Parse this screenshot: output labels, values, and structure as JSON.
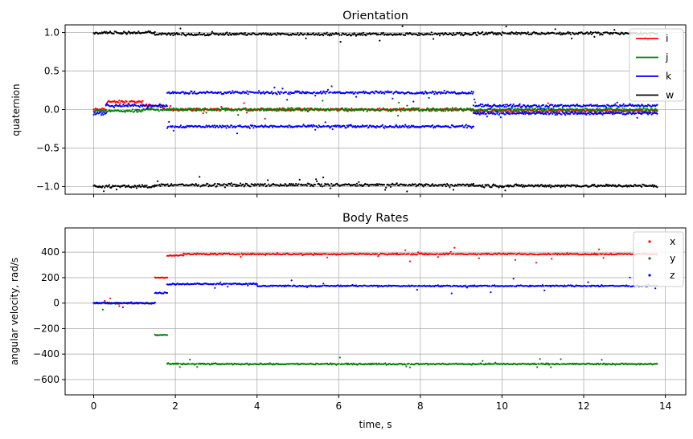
{
  "chart_data": [
    {
      "type": "scatter",
      "title": "Orientation",
      "ylabel": "quaternion",
      "xlabel": "",
      "xlim": [
        -0.7,
        14.5
      ],
      "ylim": [
        -1.1,
        1.1
      ],
      "yticks": [
        -1.0,
        -0.5,
        0.0,
        0.5,
        1.0
      ],
      "ytick_labels": [
        "−1.0",
        "−0.5",
        "0.0",
        "0.5",
        "1.0"
      ],
      "xticks": [
        0,
        2,
        4,
        6,
        8,
        10,
        12,
        14
      ],
      "show_xtick_labels": false,
      "grid": true,
      "legend": "top-right",
      "legend_style": "line",
      "t_end": 13.8,
      "series": [
        {
          "name": "i",
          "color": "#ff0000",
          "segments": [
            {
              "from": 0.0,
              "to": 0.3,
              "value": 0.0
            },
            {
              "from": 0.3,
              "to": 1.2,
              "value": 0.1
            },
            {
              "from": 1.2,
              "to": 1.7,
              "value": 0.05
            },
            {
              "from": 1.7,
              "to": 9.3,
              "value": 0.0
            },
            {
              "from": 9.3,
              "to": 13.8,
              "value": -0.02
            }
          ]
        },
        {
          "name": "j",
          "color": "#008000",
          "segments": [
            {
              "from": 0.0,
              "to": 1.2,
              "value": -0.02
            },
            {
              "from": 1.2,
              "to": 9.3,
              "value": 0.0
            },
            {
              "from": 9.3,
              "to": 13.8,
              "value": 0.0
            }
          ]
        },
        {
          "name": "k",
          "color": "#0000ff",
          "segments": [
            {
              "from": 0.0,
              "to": 0.3,
              "value": -0.05
            },
            {
              "from": 0.3,
              "to": 1.8,
              "value": 0.05
            },
            {
              "from": 1.8,
              "to": 9.3,
              "value": 0.22
            },
            {
              "from": 1.8,
              "to": 9.3,
              "value": -0.22
            },
            {
              "from": 9.3,
              "to": 13.8,
              "value": 0.05
            },
            {
              "from": 9.3,
              "to": 13.8,
              "value": -0.05
            }
          ]
        },
        {
          "name": "w",
          "color": "#000000",
          "segments": [
            {
              "from": 0.0,
              "to": 1.5,
              "value": 1.0
            },
            {
              "from": 0.0,
              "to": 1.5,
              "value": -1.0
            },
            {
              "from": 1.5,
              "to": 9.3,
              "value": 0.98
            },
            {
              "from": 1.5,
              "to": 9.3,
              "value": -0.98
            },
            {
              "from": 9.3,
              "to": 13.8,
              "value": 0.99
            },
            {
              "from": 9.3,
              "to": 13.8,
              "value": -0.99
            }
          ]
        }
      ]
    },
    {
      "type": "scatter",
      "title": "Body Rates",
      "ylabel": "angular velocity, rad/s",
      "xlabel": "time, s",
      "xlim": [
        -0.7,
        14.5
      ],
      "ylim": [
        -720,
        590
      ],
      "yticks": [
        -600,
        -400,
        -200,
        0,
        200,
        400
      ],
      "ytick_labels": [
        "−600",
        "−400",
        "−200",
        "0",
        "200",
        "400"
      ],
      "xticks": [
        0,
        2,
        4,
        6,
        8,
        10,
        12,
        14
      ],
      "xtick_labels": [
        "0",
        "2",
        "4",
        "6",
        "8",
        "10",
        "12",
        "14"
      ],
      "show_xtick_labels": true,
      "grid": true,
      "legend": "top-right",
      "legend_style": "marker",
      "t_end": 13.8,
      "series": [
        {
          "name": "x",
          "color": "#ff0000",
          "segments": [
            {
              "from": 0.0,
              "to": 1.5,
              "value": 0
            },
            {
              "from": 1.5,
              "to": 1.8,
              "value": 200
            },
            {
              "from": 1.8,
              "to": 2.2,
              "value": 375
            },
            {
              "from": 2.2,
              "to": 13.8,
              "value": 385
            }
          ]
        },
        {
          "name": "y",
          "color": "#008000",
          "segments": [
            {
              "from": 0.0,
              "to": 1.5,
              "value": 0
            },
            {
              "from": 1.5,
              "to": 1.8,
              "value": -250
            },
            {
              "from": 1.8,
              "to": 13.8,
              "value": -478
            }
          ]
        },
        {
          "name": "z",
          "color": "#0000ff",
          "segments": [
            {
              "from": 0.0,
              "to": 1.5,
              "value": 0
            },
            {
              "from": 1.5,
              "to": 1.8,
              "value": 80
            },
            {
              "from": 1.8,
              "to": 4.0,
              "value": 150
            },
            {
              "from": 4.0,
              "to": 13.8,
              "value": 135
            }
          ]
        }
      ]
    }
  ]
}
